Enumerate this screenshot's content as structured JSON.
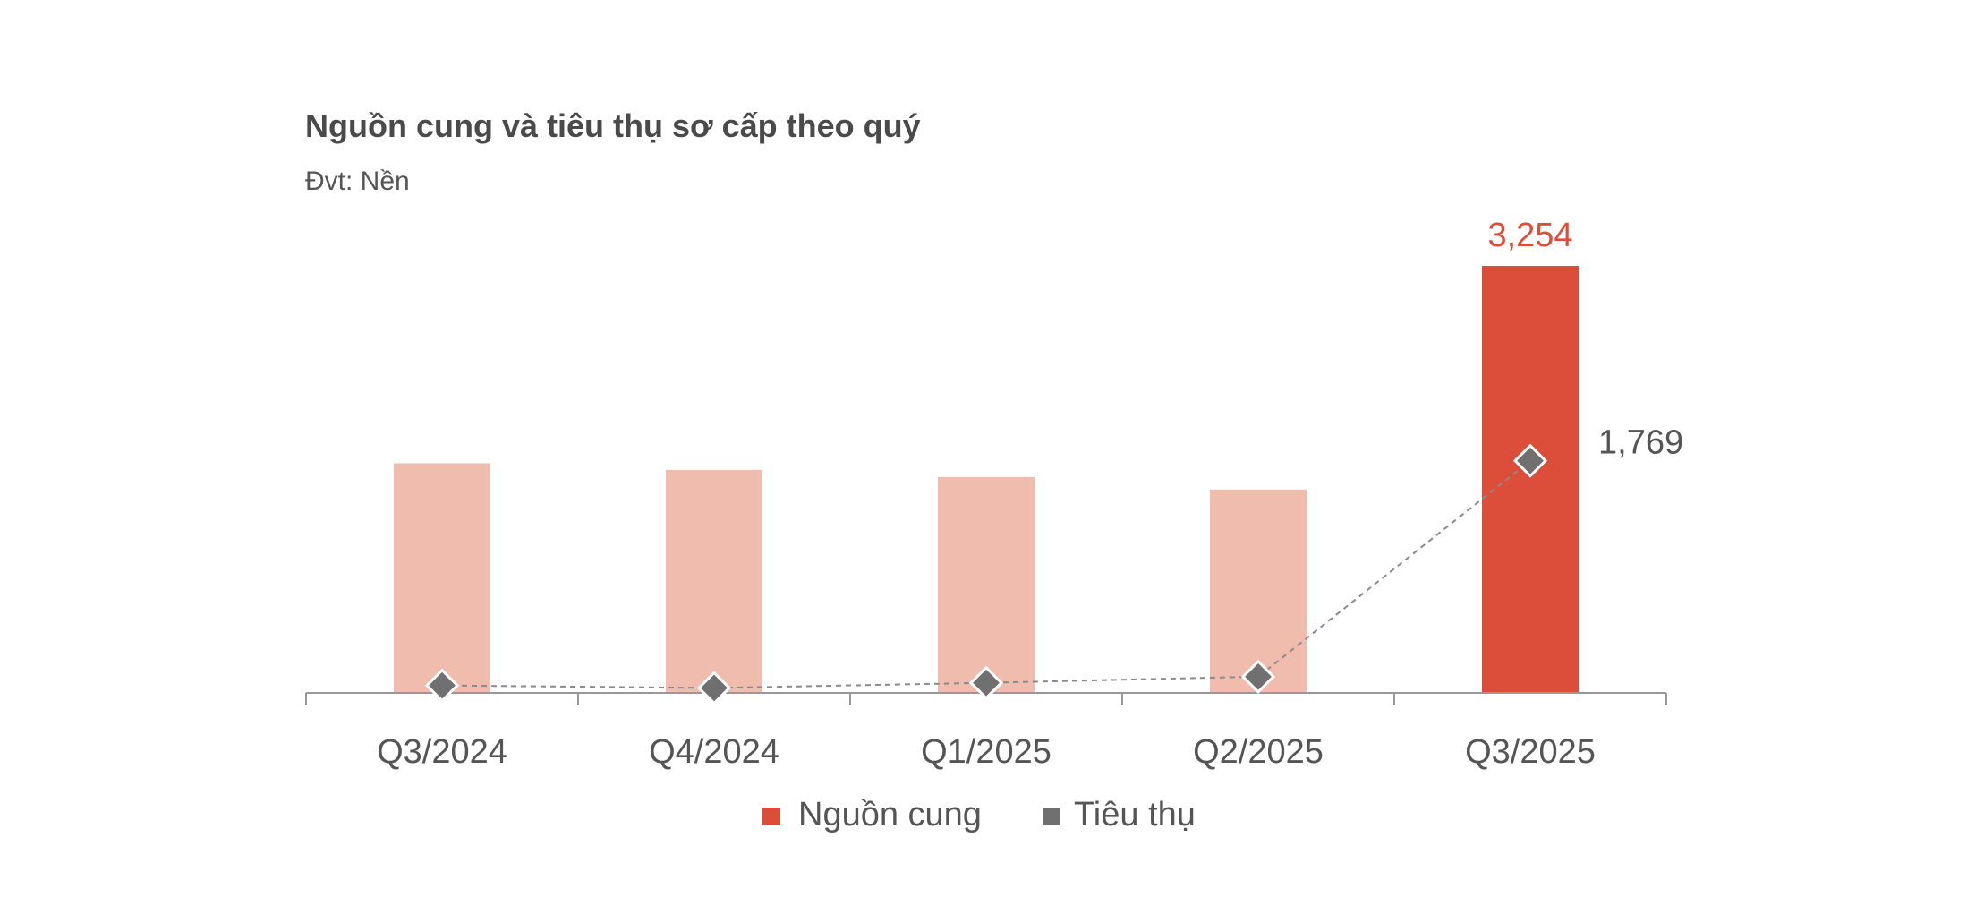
{
  "chart_data": {
    "type": "bar",
    "title": "Nguồn cung và tiêu thụ sơ cấp theo quý",
    "subtitle": "Đvt: Nền",
    "categories": [
      "Q3/2024",
      "Q4/2024",
      "Q1/2025",
      "Q2/2025",
      "Q3/2025"
    ],
    "series": [
      {
        "name": "Nguồn cung",
        "type": "bar",
        "values": [
          1750,
          1700,
          1645,
          1550,
          3254
        ],
        "color": "#dc4e3a",
        "faded_color": "#f0bcae"
      },
      {
        "name": "Tiêu thụ",
        "type": "line",
        "values": [
          57,
          38,
          77,
          124,
          1769
        ],
        "color": "#707070",
        "line_style": "dashed",
        "marker": "diamond"
      }
    ],
    "data_labels": {
      "bar_last": "3,254",
      "line_last": "1,769"
    },
    "ylim": [
      0,
      3254
    ],
    "grid": false,
    "legend_position": "bottom"
  }
}
